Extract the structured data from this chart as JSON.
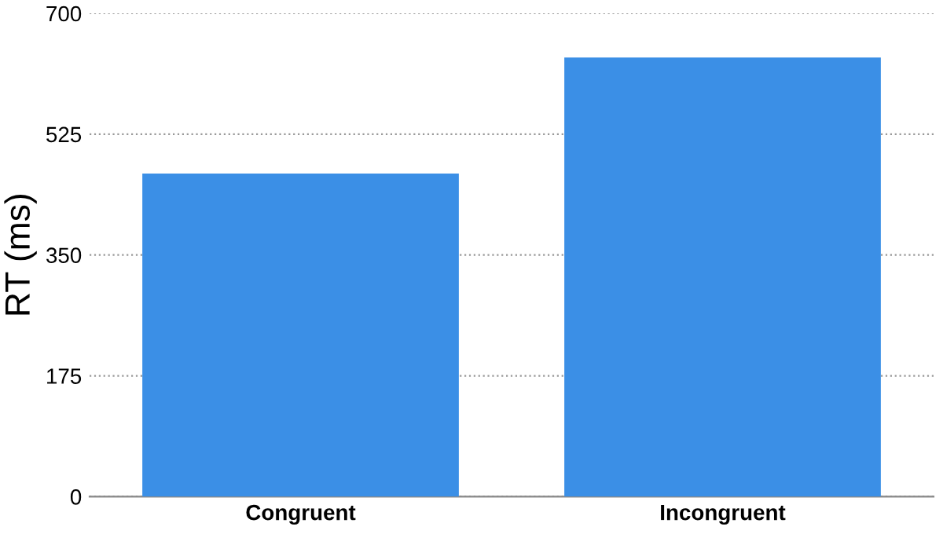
{
  "chart_data": {
    "type": "bar",
    "ylabel": "RT (ms)",
    "categories": [
      "Congruent",
      "Incongruent"
    ],
    "values": [
      468,
      636
    ],
    "color": "#3b8fe6",
    "ylim": [
      0,
      700
    ],
    "yticks": [
      0,
      175,
      350,
      525,
      700
    ],
    "grid": "y"
  }
}
